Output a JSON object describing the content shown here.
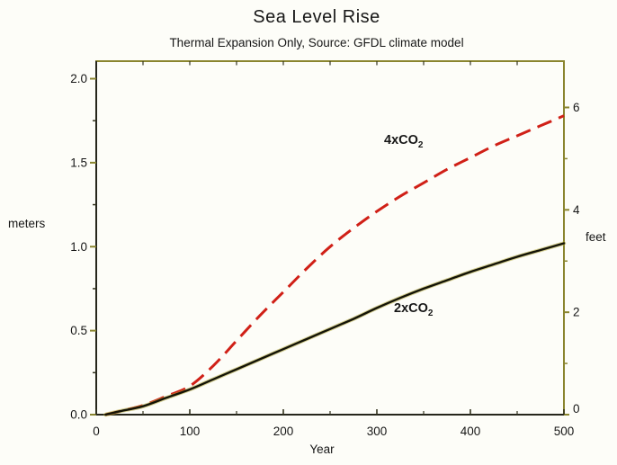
{
  "title": "Sea Level Rise",
  "subtitle": "Thermal Expansion Only,  Source:  GFDL climate model",
  "axes": {
    "x": {
      "label": "Year",
      "tick_values": [
        0,
        100,
        200,
        300,
        400,
        500
      ],
      "tick_labels": [
        "0",
        "100",
        "200",
        "300",
        "400",
        "500"
      ],
      "minor_values": [
        50,
        150,
        250,
        350,
        450
      ],
      "top_tick_values": [
        50,
        100,
        150,
        200,
        250,
        300,
        350,
        400,
        450
      ]
    },
    "left": {
      "label": "meters",
      "tick_values": [
        0,
        0.5,
        1.0,
        1.5,
        2.0
      ],
      "tick_labels": [
        "0.0",
        "0.5",
        "1.0",
        "1.5",
        "2.0"
      ],
      "minor_values": [
        0.25,
        0.75,
        1.25,
        1.75
      ]
    },
    "right": {
      "label": "feet",
      "tick_values": [
        0,
        2,
        4,
        6
      ],
      "tick_labels": [
        "0",
        "2",
        "4",
        "6"
      ],
      "minor_values": [
        1,
        3,
        5
      ]
    }
  },
  "colors": {
    "background": "#fdfdf8",
    "frame_olive": "#8a852f",
    "frame_dark": "#26261c",
    "tick_olive": "#8a852f",
    "tick_dark": "#33331f",
    "text": "#171717",
    "series_4xco2": "#d02017",
    "series_2xco2": "#141407",
    "series_2xco2_halo": "#b3a83d"
  },
  "chart_data": {
    "type": "line",
    "title": "Sea Level Rise",
    "subtitle": "Thermal Expansion Only,  Source:  GFDL climate model",
    "xlabel": "Year",
    "ylabel_left": "meters",
    "ylabel_right": "feet",
    "xlim": [
      0,
      500
    ],
    "ylim_meters": [
      0,
      2.0
    ],
    "ylim_feet": [
      0,
      6.56
    ],
    "feet_per_meter": 3.2808,
    "grid": false,
    "legend": "inline curve labels",
    "series": [
      {
        "name": "4xCO2",
        "label_main": "4xCO",
        "label_sub": "2",
        "style": "dashed",
        "color": "#d02017",
        "units": "meters",
        "points": [
          [
            10,
            0.0
          ],
          [
            25,
            0.02
          ],
          [
            50,
            0.055
          ],
          [
            75,
            0.11
          ],
          [
            100,
            0.17
          ],
          [
            125,
            0.29
          ],
          [
            150,
            0.44
          ],
          [
            175,
            0.59
          ],
          [
            200,
            0.73
          ],
          [
            225,
            0.87
          ],
          [
            250,
            1.0
          ],
          [
            275,
            1.11
          ],
          [
            300,
            1.21
          ],
          [
            325,
            1.3
          ],
          [
            350,
            1.38
          ],
          [
            375,
            1.46
          ],
          [
            400,
            1.53
          ],
          [
            425,
            1.6
          ],
          [
            450,
            1.66
          ],
          [
            475,
            1.72
          ],
          [
            500,
            1.78
          ]
        ]
      },
      {
        "name": "2xCO2",
        "label_main": "2xCO",
        "label_sub": "2",
        "style": "solid",
        "color": "#141407",
        "units": "meters",
        "points": [
          [
            10,
            0.0
          ],
          [
            25,
            0.02
          ],
          [
            50,
            0.05
          ],
          [
            75,
            0.1
          ],
          [
            100,
            0.15
          ],
          [
            125,
            0.21
          ],
          [
            150,
            0.27
          ],
          [
            175,
            0.33
          ],
          [
            200,
            0.39
          ],
          [
            225,
            0.45
          ],
          [
            250,
            0.51
          ],
          [
            275,
            0.57
          ],
          [
            300,
            0.635
          ],
          [
            325,
            0.695
          ],
          [
            350,
            0.75
          ],
          [
            375,
            0.8
          ],
          [
            400,
            0.85
          ],
          [
            425,
            0.895
          ],
          [
            450,
            0.94
          ],
          [
            475,
            0.98
          ],
          [
            500,
            1.02
          ]
        ]
      }
    ]
  }
}
